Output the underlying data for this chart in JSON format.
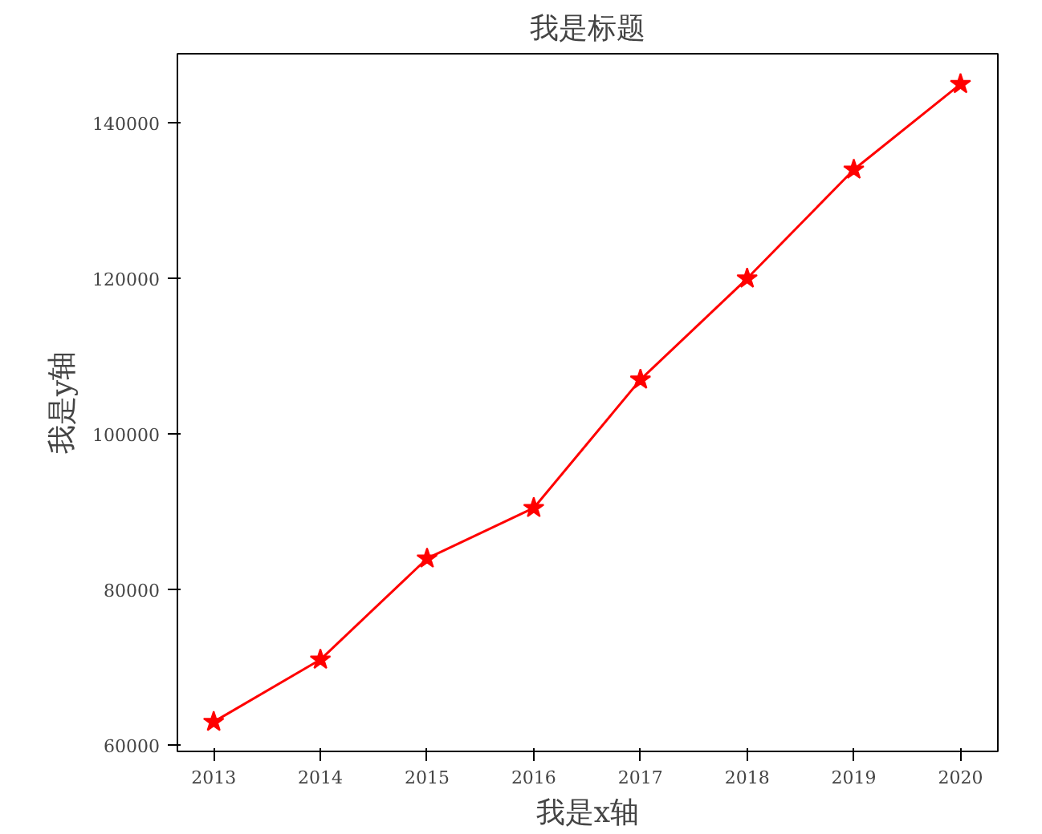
{
  "chart_data": {
    "type": "line",
    "title": "我是标题",
    "xlabel": "我是x轴",
    "ylabel": "我是y轴",
    "x": [
      2013,
      2014,
      2015,
      2016,
      2017,
      2018,
      2019,
      2020
    ],
    "series": [
      {
        "color": "#ff0000",
        "values": [
          63000,
          71000,
          84000,
          90500,
          107000,
          120000,
          134000,
          145000
        ]
      }
    ],
    "xlim": [
      2012.66,
      2020.35
    ],
    "ylim": [
      59200,
      148900
    ],
    "xticks": [
      2013,
      2014,
      2015,
      2016,
      2017,
      2018,
      2019,
      2020
    ],
    "yticks": [
      60000,
      80000,
      100000,
      120000,
      140000
    ],
    "marker": "star",
    "line_style": "solid",
    "grid": false
  }
}
